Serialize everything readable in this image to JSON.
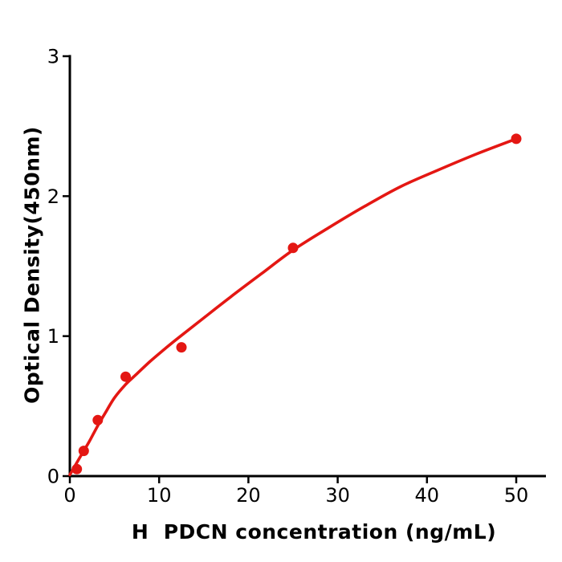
{
  "chart_data": {
    "type": "scatter",
    "title": "",
    "xlabel": "H  PDCN concentration (ng/mL)",
    "ylabel": "Optical Density(450nm)",
    "xlim": [
      0,
      53.3
    ],
    "ylim": [
      0,
      3
    ],
    "xticks": [
      0,
      10,
      20,
      30,
      40,
      50
    ],
    "yticks": [
      0,
      1,
      2,
      3
    ],
    "grid": false,
    "legend_position": "none",
    "axis_color": "#000000",
    "accent_color": "#e41713",
    "series": [
      {
        "name": "standard-data-points",
        "type": "scatter",
        "x": [
          0.78,
          1.56,
          3.125,
          6.25,
          12.5,
          25,
          50
        ],
        "y": [
          0.05,
          0.18,
          0.4,
          0.71,
          0.92,
          1.63,
          2.41
        ]
      },
      {
        "name": "fitted-curve",
        "type": "line",
        "points": [
          [
            0,
            0.01
          ],
          [
            0.5,
            0.065
          ],
          [
            1.0,
            0.12
          ],
          [
            1.56,
            0.18
          ],
          [
            2.2,
            0.25
          ],
          [
            3.125,
            0.36
          ],
          [
            4.0,
            0.455
          ],
          [
            5.0,
            0.56
          ],
          [
            6.25,
            0.655
          ],
          [
            7.5,
            0.73
          ],
          [
            9.0,
            0.82
          ],
          [
            10.75,
            0.915
          ],
          [
            12.5,
            1.005
          ],
          [
            15,
            1.13
          ],
          [
            18,
            1.28
          ],
          [
            21.5,
            1.448
          ],
          [
            25,
            1.615
          ],
          [
            29,
            1.775
          ],
          [
            33,
            1.927
          ],
          [
            37,
            2.067
          ],
          [
            41,
            2.18
          ],
          [
            45.5,
            2.3
          ],
          [
            50,
            2.41
          ]
        ]
      }
    ]
  }
}
